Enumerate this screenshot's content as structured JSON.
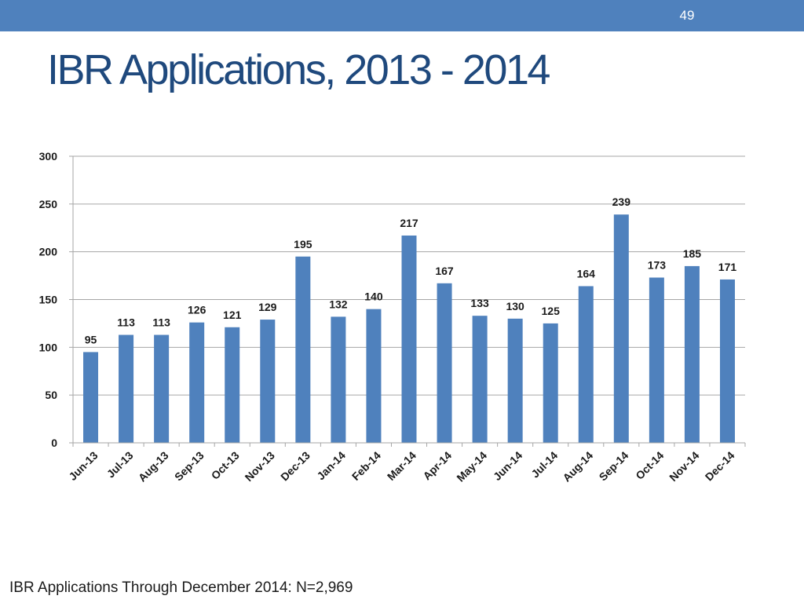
{
  "slide": {
    "number": "49",
    "title": "IBR Applications, 2013 - 2014",
    "footnote": "IBR Applications Through December 2014: N=2,969"
  },
  "colors": {
    "header_bar": "#4f81bd",
    "title": "#1f497d",
    "bar": "#4f81bd",
    "gridline": "#a6a6a6"
  },
  "chart_data": {
    "type": "bar",
    "title": "",
    "xlabel": "",
    "ylabel": "",
    "categories": [
      "Jun-13",
      "Jul-13",
      "Aug-13",
      "Sep-13",
      "Oct-13",
      "Nov-13",
      "Dec-13",
      "Jan-14",
      "Feb-14",
      "Mar-14",
      "Apr-14",
      "May-14",
      "Jun-14",
      "Jul-14",
      "Aug-14",
      "Sep-14",
      "Oct-14",
      "Nov-14",
      "Dec-14"
    ],
    "values": [
      95,
      113,
      113,
      126,
      121,
      129,
      195,
      132,
      140,
      217,
      167,
      133,
      130,
      125,
      164,
      239,
      173,
      185,
      171
    ],
    "data_labels": [
      "95",
      "113",
      "113",
      "126",
      "121",
      "129",
      "195",
      "132",
      "140",
      "217",
      "167",
      "133",
      "130",
      "125",
      "164",
      "239",
      "173",
      "185",
      "171"
    ],
    "ylim": [
      0,
      300
    ],
    "yticks": [
      0,
      50,
      100,
      150,
      200,
      250,
      300
    ],
    "ytick_labels": [
      "0",
      "50",
      "100",
      "150",
      "200",
      "250",
      "300"
    ],
    "grid": true,
    "legend": "none"
  }
}
